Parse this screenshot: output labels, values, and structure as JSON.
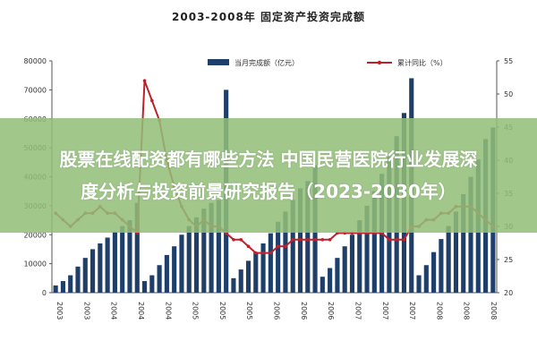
{
  "chart_data": {
    "type": "bar",
    "title": "2003-2008年 固定资产投资完成额",
    "series": [
      {
        "name": "当月完成额（亿元）",
        "type": "bar",
        "axis": "left",
        "color": "#1f3f6b",
        "values": [
          2500,
          4000,
          6000,
          9000,
          12000,
          15000,
          17000,
          19000,
          21000,
          23000,
          25000,
          31000,
          4000,
          6000,
          9500,
          13000,
          16000,
          20000,
          23000,
          26000,
          29000,
          31000,
          32000,
          70000,
          5000,
          8000,
          11000,
          14000,
          17000,
          20500,
          24500,
          28000,
          32000,
          36000,
          38500,
          44000,
          5500,
          8500,
          12000,
          16000,
          20000,
          25000,
          30000,
          35000,
          41000,
          47000,
          54000,
          62000,
          74000,
          6000,
          9500,
          14000,
          18500,
          23000,
          28000,
          34000,
          40000,
          46000,
          53000,
          57000
        ]
      },
      {
        "name": "累计同比（%）",
        "type": "line",
        "axis": "right",
        "color": "#c0202a",
        "values": [
          32,
          31,
          30,
          31,
          32,
          32,
          33,
          32,
          32,
          31,
          30,
          29,
          52,
          49,
          46,
          40,
          36,
          33,
          31,
          30,
          31,
          30,
          30,
          29,
          28,
          28,
          27,
          26,
          26,
          26,
          27,
          27,
          28,
          28,
          28,
          28,
          28,
          28,
          29,
          29,
          29,
          29,
          29,
          29,
          29,
          28,
          28,
          28,
          30,
          30,
          31,
          31,
          32,
          32,
          33,
          33,
          33,
          32,
          31,
          30
        ]
      }
    ],
    "ylim_left": [
      0,
      80000
    ],
    "yticks_left": [
      "0",
      "10000",
      "20000",
      "30000",
      "40000",
      "50000",
      "60000",
      "70000",
      "80000"
    ],
    "ylim_right": [
      20,
      55
    ],
    "yticks_right": [
      "20",
      "25",
      "30",
      "35",
      "40",
      "45",
      "50",
      "55"
    ],
    "xticks": [
      "2003",
      "2003",
      "2004",
      "2004",
      "2004",
      "2005",
      "2005",
      "2005",
      "2006",
      "2006",
      "2006",
      "2007",
      "2007",
      "2007",
      "2008",
      "2008",
      "2008"
    ],
    "legend_position": "top",
    "grid": false
  },
  "overlay": {
    "line1": "股票在线配资都有哪些方法 中国民营医院行业发展深",
    "line2": "度分析与投资前景研究报告（2023-2030年）"
  }
}
